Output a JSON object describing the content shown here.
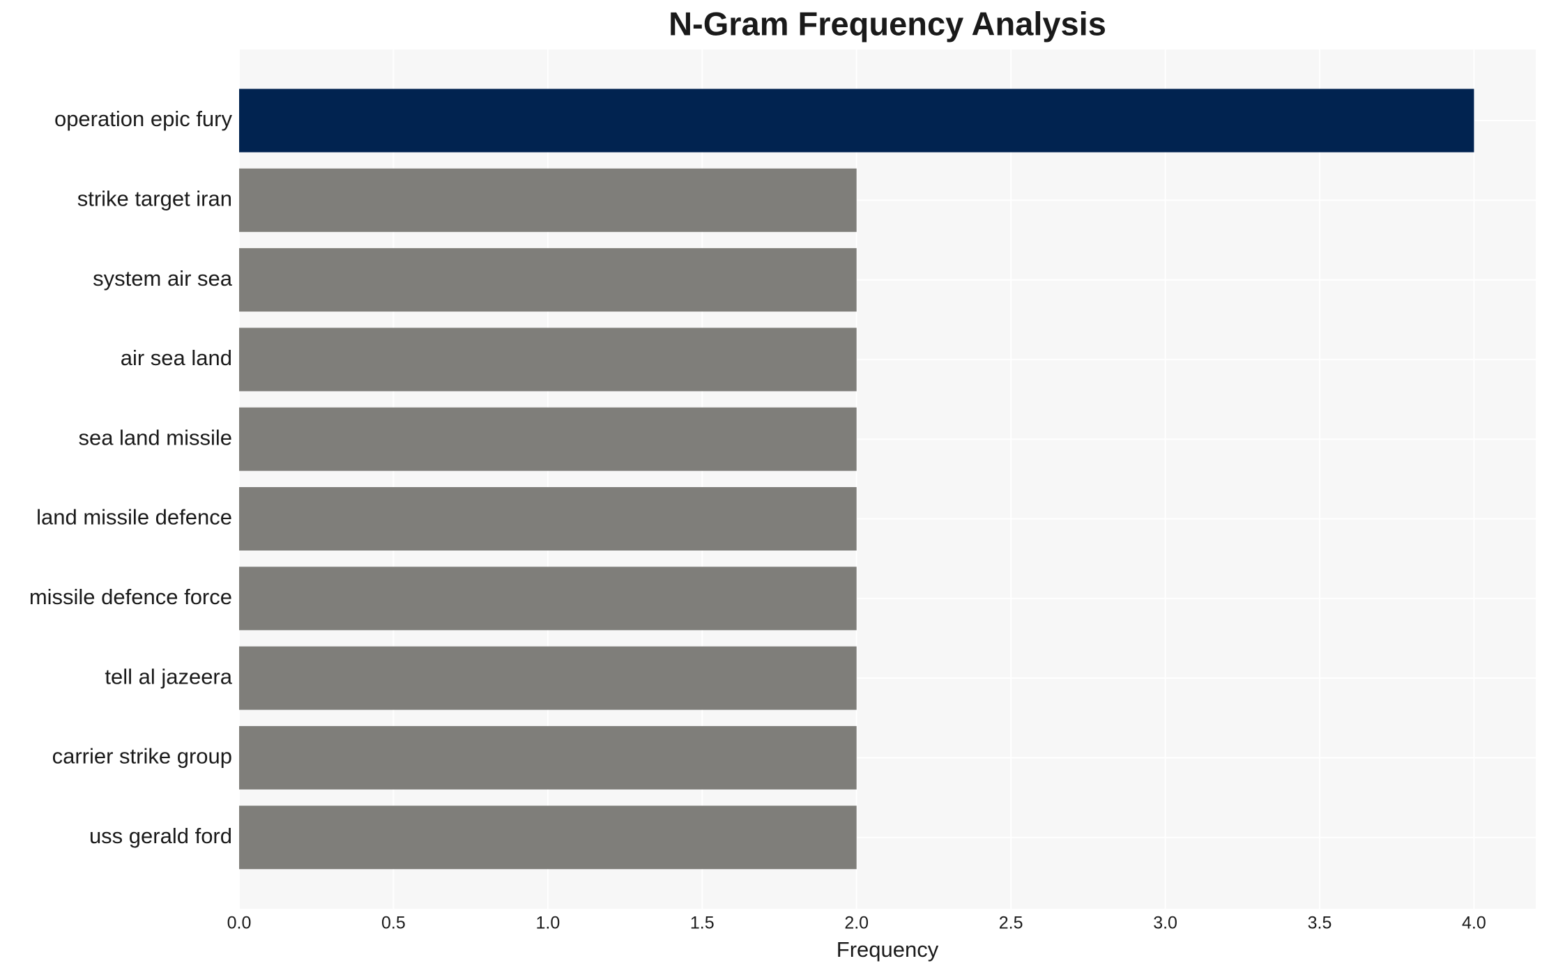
{
  "chart_data": {
    "type": "barh",
    "title": "N-Gram Frequency Analysis",
    "x_label": "Frequency",
    "categories": [
      "operation epic fury",
      "strike target iran",
      "system air sea",
      "air sea land",
      "sea land missile",
      "land missile defence",
      "missile defence force",
      "tell al jazeera",
      "carrier strike group",
      "uss gerald ford"
    ],
    "values": [
      4,
      2,
      2,
      2,
      2,
      2,
      2,
      2,
      2,
      2
    ],
    "colors": [
      "#012350",
      "#7f7e7a",
      "#7f7e7a",
      "#7f7e7a",
      "#7f7e7a",
      "#7f7e7a",
      "#7f7e7a",
      "#7f7e7a",
      "#7f7e7a",
      "#7f7e7a"
    ],
    "xlim": [
      0,
      4.2
    ],
    "xticks": [
      {
        "value": 0,
        "label": "0.0"
      },
      0.5,
      {
        "value": 1,
        "label": "1.0"
      },
      1.5,
      {
        "value": 2,
        "label": "2.0"
      },
      2.5,
      {
        "value": 3,
        "label": "3.0"
      },
      3.5,
      {
        "value": 4,
        "label": "4.0"
      }
    ],
    "grid": true
  }
}
